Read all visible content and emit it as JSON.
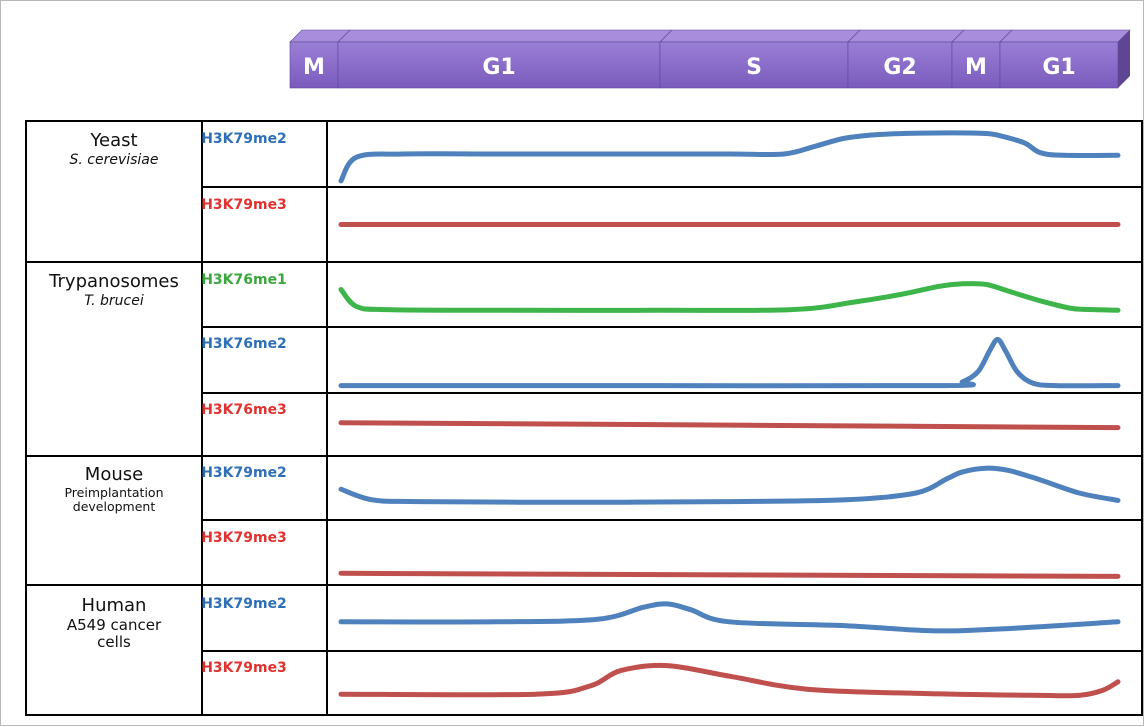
{
  "colors": {
    "phase_fill": "#8a6cc8",
    "phase_top": "#a78ddb",
    "phase_edge": "#5e4694",
    "blue": "#4f81bd",
    "red": "#c0504d",
    "green": "#3db54a",
    "label_blue": "#2e6fb8",
    "label_red": "#e0322f",
    "label_green": "#3aa63c"
  },
  "phases": [
    "M",
    "G1",
    "S",
    "G2",
    "M",
    "G1"
  ],
  "organisms": [
    {
      "name": "Yeast",
      "detail": "S. cerevisiae",
      "marks": [
        {
          "label": "H3K79me2",
          "color": "blue",
          "curve": [
            [
              0,
              0.92
            ],
            [
              0.02,
              0.55
            ],
            [
              0.08,
              0.5
            ],
            [
              0.2,
              0.5
            ],
            [
              0.35,
              0.5
            ],
            [
              0.5,
              0.5
            ],
            [
              0.57,
              0.5
            ],
            [
              0.61,
              0.38
            ],
            [
              0.65,
              0.25
            ],
            [
              0.7,
              0.19
            ],
            [
              0.78,
              0.17
            ],
            [
              0.83,
              0.18
            ],
            [
              0.85,
              0.22
            ],
            [
              0.88,
              0.33
            ],
            [
              0.9,
              0.48
            ],
            [
              0.93,
              0.52
            ],
            [
              1,
              0.52
            ]
          ]
        },
        {
          "label": "H3K79me3",
          "color": "red",
          "curve": [
            [
              0,
              0.5
            ],
            [
              1,
              0.5
            ]
          ]
        }
      ]
    },
    {
      "name": "Trypanosomes",
      "detail": "T. brucei",
      "marks": [
        {
          "label": "H3K76me1",
          "color": "green",
          "curve": [
            [
              0,
              0.42
            ],
            [
              0.02,
              0.69
            ],
            [
              0.06,
              0.74
            ],
            [
              0.2,
              0.75
            ],
            [
              0.4,
              0.75
            ],
            [
              0.58,
              0.74
            ],
            [
              0.66,
              0.62
            ],
            [
              0.72,
              0.5
            ],
            [
              0.77,
              0.37
            ],
            [
              0.8,
              0.33
            ],
            [
              0.83,
              0.34
            ],
            [
              0.86,
              0.45
            ],
            [
              0.9,
              0.6
            ],
            [
              0.94,
              0.72
            ],
            [
              0.97,
              0.74
            ],
            [
              1,
              0.75
            ]
          ]
        },
        {
          "label": "H3K76me2",
          "color": "blue",
          "curve": [
            [
              0,
              0.9
            ],
            [
              0.4,
              0.9
            ],
            [
              0.78,
              0.9
            ],
            [
              0.8,
              0.84
            ],
            [
              0.82,
              0.68
            ],
            [
              0.835,
              0.35
            ],
            [
              0.845,
              0.18
            ],
            [
              0.855,
              0.35
            ],
            [
              0.87,
              0.68
            ],
            [
              0.89,
              0.86
            ],
            [
              0.92,
              0.9
            ],
            [
              1,
              0.9
            ]
          ]
        },
        {
          "label": "H3K76me3",
          "color": "red",
          "curve": [
            [
              0,
              0.47
            ],
            [
              1,
              0.55
            ]
          ]
        }
      ]
    },
    {
      "name": "Mouse",
      "detail": "Preimplantation development",
      "marks": [
        {
          "label": "H3K79me2",
          "color": "blue",
          "curve": [
            [
              0,
              0.52
            ],
            [
              0.04,
              0.69
            ],
            [
              0.1,
              0.72
            ],
            [
              0.3,
              0.73
            ],
            [
              0.5,
              0.72
            ],
            [
              0.65,
              0.69
            ],
            [
              0.74,
              0.58
            ],
            [
              0.78,
              0.35
            ],
            [
              0.8,
              0.24
            ],
            [
              0.83,
              0.18
            ],
            [
              0.86,
              0.22
            ],
            [
              0.9,
              0.37
            ],
            [
              0.95,
              0.58
            ],
            [
              1,
              0.7
            ]
          ]
        },
        {
          "label": "H3K79me3",
          "color": "red",
          "curve": [
            [
              0,
              0.83
            ],
            [
              1,
              0.88
            ]
          ]
        }
      ]
    },
    {
      "name": "Human",
      "detail": "A549 cancer cells",
      "marks": [
        {
          "label": "H3K79me2",
          "color": "blue",
          "curve": [
            [
              0,
              0.56
            ],
            [
              0.2,
              0.56
            ],
            [
              0.33,
              0.52
            ],
            [
              0.39,
              0.33
            ],
            [
              0.42,
              0.28
            ],
            [
              0.45,
              0.37
            ],
            [
              0.5,
              0.56
            ],
            [
              0.65,
              0.62
            ],
            [
              0.76,
              0.7
            ],
            [
              0.85,
              0.67
            ],
            [
              1,
              0.56
            ]
          ]
        },
        {
          "label": "H3K79me3",
          "color": "red",
          "curve": [
            [
              0,
              0.68
            ],
            [
              0.25,
              0.68
            ],
            [
              0.32,
              0.55
            ],
            [
              0.36,
              0.3
            ],
            [
              0.42,
              0.22
            ],
            [
              0.5,
              0.39
            ],
            [
              0.6,
              0.6
            ],
            [
              0.75,
              0.67
            ],
            [
              0.9,
              0.7
            ],
            [
              0.95,
              0.7
            ],
            [
              0.98,
              0.62
            ],
            [
              1,
              0.48
            ]
          ]
        }
      ]
    }
  ]
}
